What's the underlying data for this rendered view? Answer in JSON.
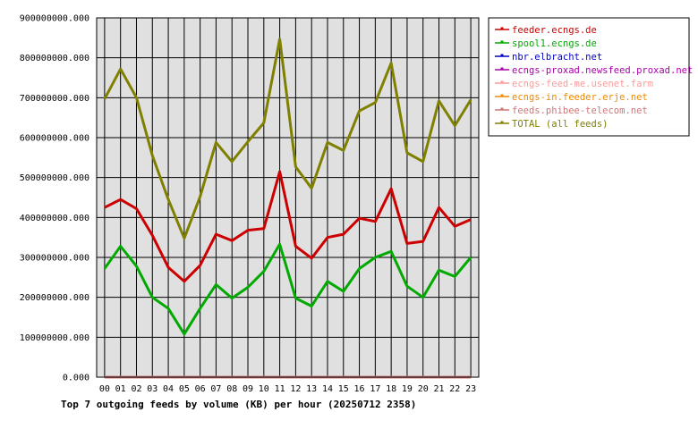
{
  "chart_data": {
    "type": "line",
    "title": "Top 7 outgoing feeds by volume (KB) per hour (20250712 2358)",
    "xlabel": "",
    "ylabel": "",
    "categories": [
      "00",
      "01",
      "02",
      "03",
      "04",
      "05",
      "06",
      "07",
      "08",
      "09",
      "10",
      "11",
      "12",
      "13",
      "14",
      "15",
      "16",
      "17",
      "18",
      "19",
      "20",
      "21",
      "22",
      "23"
    ],
    "ylim": [
      0,
      900000000
    ],
    "yticks": [
      0,
      100000000,
      200000000,
      300000000,
      400000000,
      500000000,
      600000000,
      700000000,
      800000000,
      900000000
    ],
    "ytick_labels": [
      "0.000",
      "100000000.000",
      "200000000.000",
      "300000000.000",
      "400000000.000",
      "500000000.000",
      "600000000.000",
      "700000000.000",
      "800000000.000",
      "900000000.000"
    ],
    "grid": true,
    "legend_position": "top-right",
    "series": [
      {
        "name": "feeder.ecngs.de",
        "color": "#cc0000",
        "values": [
          425000000,
          445000000,
          422000000,
          355000000,
          275000000,
          240000000,
          280000000,
          358000000,
          342000000,
          368000000,
          372000000,
          515000000,
          328000000,
          298000000,
          350000000,
          358000000,
          398000000,
          390000000,
          472000000,
          335000000,
          340000000,
          425000000,
          378000000,
          395000000
        ]
      },
      {
        "name": "spool1.ecngs.de",
        "color": "#00aa00",
        "values": [
          272000000,
          328000000,
          278000000,
          200000000,
          172000000,
          108000000,
          172000000,
          232000000,
          198000000,
          225000000,
          265000000,
          333000000,
          198000000,
          178000000,
          240000000,
          215000000,
          272000000,
          300000000,
          315000000,
          228000000,
          200000000,
          268000000,
          252000000,
          300000000
        ]
      },
      {
        "name": "nbr.elbracht.net",
        "color": "#0000cc",
        "values": [
          0,
          0,
          0,
          0,
          0,
          0,
          0,
          0,
          0,
          0,
          0,
          0,
          0,
          0,
          0,
          0,
          0,
          0,
          0,
          0,
          0,
          0,
          0,
          0
        ]
      },
      {
        "name": "ecngs-proxad.newsfeed.proxad.net",
        "color": "#aa00aa",
        "values": [
          0,
          0,
          0,
          0,
          0,
          0,
          0,
          0,
          0,
          0,
          0,
          0,
          0,
          0,
          0,
          0,
          0,
          0,
          0,
          0,
          0,
          0,
          0,
          0
        ]
      },
      {
        "name": "ecngs-feed-me.usenet.farm",
        "color": "#ff9999",
        "values": [
          0,
          0,
          0,
          0,
          0,
          0,
          0,
          0,
          0,
          0,
          0,
          0,
          0,
          0,
          0,
          0,
          0,
          0,
          0,
          0,
          0,
          0,
          0,
          0
        ]
      },
      {
        "name": "ecngs-in.feeder.erje.net",
        "color": "#ee8800",
        "values": [
          0,
          0,
          0,
          0,
          0,
          0,
          0,
          0,
          0,
          0,
          0,
          0,
          0,
          0,
          0,
          0,
          0,
          0,
          0,
          0,
          0,
          0,
          0,
          0
        ]
      },
      {
        "name": "feeds.phibee-telecom.net",
        "color": "#cc7777",
        "values": [
          0,
          0,
          0,
          0,
          0,
          0,
          0,
          0,
          0,
          0,
          0,
          0,
          0,
          0,
          0,
          0,
          0,
          0,
          0,
          0,
          0,
          0,
          0,
          0
        ]
      },
      {
        "name": "TOTAL (all feeds)",
        "color": "#808000",
        "values": [
          697000000,
          772000000,
          700000000,
          555000000,
          445000000,
          348000000,
          452000000,
          588000000,
          540000000,
          590000000,
          637000000,
          847000000,
          527000000,
          473000000,
          588000000,
          568000000,
          667000000,
          688000000,
          787000000,
          562000000,
          540000000,
          692000000,
          630000000,
          695000000
        ]
      }
    ]
  }
}
